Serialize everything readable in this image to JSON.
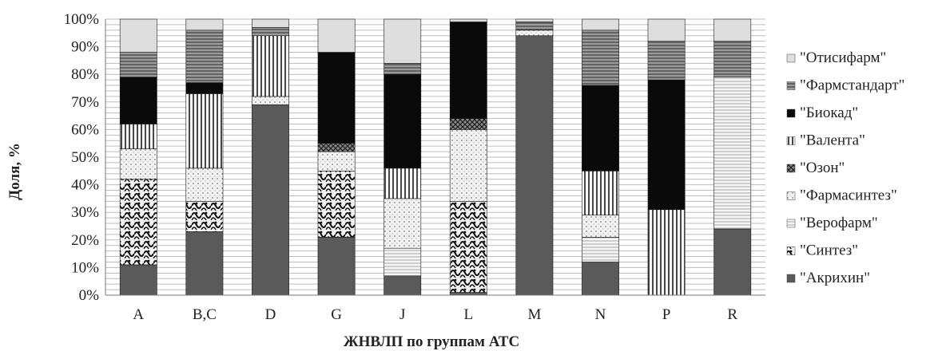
{
  "chart_data": {
    "type": "bar",
    "stacked": true,
    "percent": true,
    "xlabel": "ЖНВЛП по группам АТС",
    "ylabel": "Доля, %",
    "ylim": [
      0,
      100
    ],
    "yticks": [
      "0%",
      "10%",
      "20%",
      "30%",
      "40%",
      "50%",
      "60%",
      "70%",
      "80%",
      "90%",
      "100%"
    ],
    "grid": true,
    "legend_position": "right",
    "categories": [
      "A",
      "B,C",
      "D",
      "G",
      "J",
      "L",
      "M",
      "N",
      "P",
      "R"
    ],
    "series": [
      {
        "name": "\"Акрихин\"",
        "color": "#5a5a5a",
        "pattern": "solid",
        "values": [
          11,
          23,
          69,
          21,
          7,
          1,
          94,
          12,
          0,
          24
        ]
      },
      {
        "name": "\"Синтез\"",
        "color": "#1a1a1a",
        "pattern": "weave",
        "values": [
          31,
          11,
          0,
          24,
          0,
          33,
          0,
          0,
          0,
          0
        ]
      },
      {
        "name": "\"Верофарм\"",
        "color": "#c8c8c8",
        "pattern": "hlines-light",
        "values": [
          0,
          0,
          0,
          0,
          10,
          0,
          0,
          9,
          0,
          55
        ]
      },
      {
        "name": "\"Фармасинтез\"",
        "color": "#d6d6d6",
        "pattern": "dots-light",
        "values": [
          11,
          12,
          3,
          7,
          18,
          26,
          2,
          8,
          0,
          0
        ]
      },
      {
        "name": "\"Озон\"",
        "color": "#3a3a3a",
        "pattern": "hatch-dark",
        "values": [
          0,
          0,
          0,
          3,
          0,
          4,
          0,
          0,
          0,
          0
        ]
      },
      {
        "name": "\"Валента\"",
        "color": "#9a9a9a",
        "pattern": "solid",
        "values": [
          9,
          27,
          22,
          0,
          11,
          0,
          0,
          16,
          31,
          0
        ]
      },
      {
        "name": "\"Биокад\"",
        "color": "#0a0a0a",
        "pattern": "solid",
        "values": [
          17,
          4,
          0,
          33,
          34,
          35,
          0,
          31,
          47,
          0
        ]
      },
      {
        "name": "\"Фармстандарт\"",
        "color": "#6e6e6e",
        "pattern": "hlines-dark",
        "values": [
          9,
          19,
          3,
          0,
          4,
          0,
          3,
          20,
          14,
          13
        ]
      },
      {
        "name": "\"Отисифарм\"",
        "color": "#dedede",
        "pattern": "solid",
        "values": [
          12,
          4,
          3,
          12,
          16,
          1,
          1,
          4,
          8,
          8
        ]
      }
    ],
    "legend_order": [
      "\"Отисифарм\"",
      "\"Фармстандарт\"",
      "\"Биокад\"",
      "\"Валента\"",
      "\"Озон\"",
      "\"Фармасинтез\"",
      "\"Верофарм\"",
      "\"Синтез\"",
      "\"Акрихин\""
    ]
  }
}
